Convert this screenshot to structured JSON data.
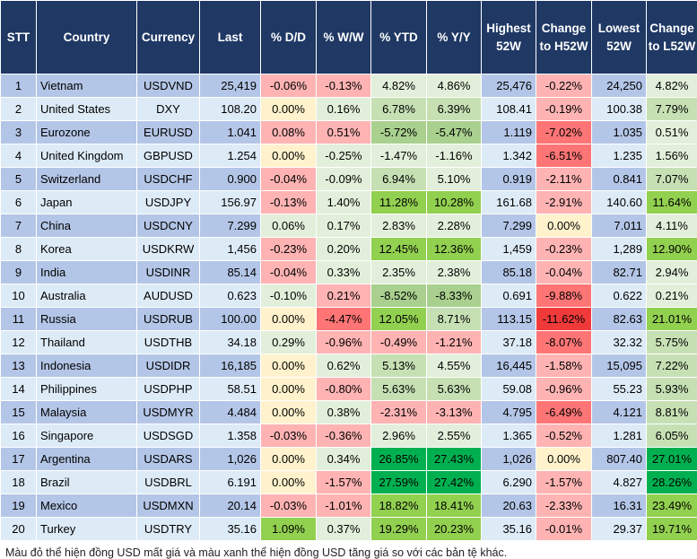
{
  "headers": [
    "STT",
    "Country",
    "Currency",
    "Last",
    "% D/D",
    "% W/W",
    "% YTD",
    "% Y/Y",
    "Highest 52W",
    "Change to H52W",
    "Lowest 52W",
    "Change to L52W"
  ],
  "colors": {
    "header": "#1f3864",
    "row_odd": "#b4c6e7",
    "row_even": "#ddebf7",
    "y": "#fff2cc",
    "r1": "#ffb3b3",
    "r2": "#ff7575",
    "r3": "#f03a3a",
    "g0": "#e2efda",
    "g1": "#c6e0b4",
    "g2": "#a9d08e",
    "g3": "#92d050",
    "g4": "#00b050"
  },
  "rows": [
    {
      "v": [
        "1",
        "Vietnam",
        "USDVND",
        "25,419",
        "-0.06%",
        "-0.13%",
        "4.82%",
        "4.86%",
        "25,476",
        "-0.22%",
        "24,250",
        "4.82%"
      ],
      "c": [
        "r1",
        "r1",
        "g0",
        "g0",
        "r1",
        "g0"
      ]
    },
    {
      "v": [
        "2",
        "United States",
        "DXY",
        "108.20",
        "0.00%",
        "0.16%",
        "6.78%",
        "6.39%",
        "108.41",
        "-0.19%",
        "100.38",
        "7.79%"
      ],
      "c": [
        "y",
        "g0",
        "g1",
        "g1",
        "r1",
        "g1"
      ]
    },
    {
      "v": [
        "3",
        "Eurozone",
        "EURUSD",
        "1.041",
        "0.08%",
        "0.51%",
        "-5.72%",
        "-5.47%",
        "1.119",
        "-7.02%",
        "1.035",
        "0.51%"
      ],
      "c": [
        "r1",
        "r1",
        "g2",
        "g2",
        "r2",
        "g0"
      ]
    },
    {
      "v": [
        "4",
        "United Kingdom",
        "GBPUSD",
        "1.254",
        "0.00%",
        "-0.25%",
        "-1.47%",
        "-1.16%",
        "1.342",
        "-6.51%",
        "1.235",
        "1.56%"
      ],
      "c": [
        "y",
        "g0",
        "g0",
        "g0",
        "r2",
        "g0"
      ]
    },
    {
      "v": [
        "5",
        "Switzerland",
        "USDCHF",
        "0.900",
        "-0.04%",
        "-0.09%",
        "6.94%",
        "5.10%",
        "0.919",
        "-2.11%",
        "0.841",
        "7.07%"
      ],
      "c": [
        "r1",
        "g0",
        "g1",
        "g0",
        "r1",
        "g1"
      ]
    },
    {
      "v": [
        "6",
        "Japan",
        "USDJPY",
        "156.97",
        "-0.13%",
        "1.40%",
        "11.28%",
        "10.28%",
        "161.68",
        "-2.91%",
        "140.60",
        "11.64%"
      ],
      "c": [
        "r1",
        "g0",
        "g3",
        "g3",
        "r1",
        "g3"
      ]
    },
    {
      "v": [
        "7",
        "China",
        "USDCNY",
        "7.299",
        "0.06%",
        "0.17%",
        "2.83%",
        "2.28%",
        "7.299",
        "0.00%",
        "7.011",
        "4.11%"
      ],
      "c": [
        "g0",
        "g0",
        "g0",
        "g0",
        "y",
        "g0"
      ]
    },
    {
      "v": [
        "8",
        "Korea",
        "USDKRW",
        "1,456",
        "-0.23%",
        "0.20%",
        "12.45%",
        "12.36%",
        "1,459",
        "-0.23%",
        "1,289",
        "12.90%"
      ],
      "c": [
        "r1",
        "g0",
        "g3",
        "g3",
        "r1",
        "g3"
      ]
    },
    {
      "v": [
        "9",
        "India",
        "USDINR",
        "85.14",
        "-0.04%",
        "0.33%",
        "2.35%",
        "2.38%",
        "85.18",
        "-0.04%",
        "82.71",
        "2.94%"
      ],
      "c": [
        "r1",
        "g0",
        "g0",
        "g0",
        "r1",
        "g0"
      ]
    },
    {
      "v": [
        "10",
        "Australia",
        "AUDUSD",
        "0.623",
        "-0.10%",
        "0.21%",
        "-8.52%",
        "-8.33%",
        "0.691",
        "-9.88%",
        "0.622",
        "0.21%"
      ],
      "c": [
        "g0",
        "r1",
        "g2",
        "g2",
        "r2",
        "g0"
      ]
    },
    {
      "v": [
        "11",
        "Russia",
        "USDRUB",
        "100.00",
        "0.00%",
        "-4.47%",
        "12.05%",
        "8.71%",
        "113.15",
        "-11.62%",
        "82.63",
        "21.01%"
      ],
      "c": [
        "y",
        "r2",
        "g3",
        "g1",
        "r3",
        "g3"
      ]
    },
    {
      "v": [
        "12",
        "Thailand",
        "USDTHB",
        "34.18",
        "0.29%",
        "-0.96%",
        "-0.49%",
        "-1.21%",
        "37.18",
        "-8.07%",
        "32.32",
        "5.75%"
      ],
      "c": [
        "g0",
        "r1",
        "r1",
        "r1",
        "r2",
        "g1"
      ]
    },
    {
      "v": [
        "13",
        "Indonesia",
        "USDIDR",
        "16,185",
        "0.00%",
        "0.62%",
        "5.13%",
        "4.55%",
        "16,445",
        "-1.58%",
        "15,095",
        "7.22%"
      ],
      "c": [
        "y",
        "g0",
        "g1",
        "g0",
        "r1",
        "g1"
      ]
    },
    {
      "v": [
        "14",
        "Philippines",
        "USDPHP",
        "58.51",
        "0.00%",
        "-0.80%",
        "5.63%",
        "5.63%",
        "59.08",
        "-0.96%",
        "55.23",
        "5.93%"
      ],
      "c": [
        "y",
        "r1",
        "g1",
        "g1",
        "r1",
        "g1"
      ]
    },
    {
      "v": [
        "15",
        "Malaysia",
        "USDMYR",
        "4.484",
        "0.00%",
        "0.38%",
        "-2.31%",
        "-3.13%",
        "4.795",
        "-6.49%",
        "4.121",
        "8.81%"
      ],
      "c": [
        "y",
        "g0",
        "r1",
        "r1",
        "r2",
        "g1"
      ]
    },
    {
      "v": [
        "16",
        "Singapore",
        "USDSGD",
        "1.358",
        "-0.03%",
        "-0.36%",
        "2.96%",
        "2.55%",
        "1.365",
        "-0.52%",
        "1.281",
        "6.05%"
      ],
      "c": [
        "r1",
        "r1",
        "g0",
        "g0",
        "r1",
        "g1"
      ]
    },
    {
      "v": [
        "17",
        "Argentina",
        "USDARS",
        "1,026",
        "0.00%",
        "0.34%",
        "26.85%",
        "27.43%",
        "1,026",
        "0.00%",
        "807.40",
        "27.01%"
      ],
      "c": [
        "y",
        "g0",
        "g4",
        "g4",
        "y",
        "g4"
      ]
    },
    {
      "v": [
        "18",
        "Brazil",
        "USDBRL",
        "6.191",
        "0.00%",
        "-1.57%",
        "27.59%",
        "27.42%",
        "6.290",
        "-1.57%",
        "4.827",
        "28.26%"
      ],
      "c": [
        "y",
        "r1",
        "g4",
        "g4",
        "r1",
        "g4"
      ]
    },
    {
      "v": [
        "19",
        "Mexico",
        "USDMXN",
        "20.14",
        "-0.03%",
        "-1.01%",
        "18.82%",
        "18.41%",
        "20.63",
        "-2.33%",
        "16.31",
        "23.49%"
      ],
      "c": [
        "r1",
        "r1",
        "g3",
        "g3",
        "r1",
        "g3"
      ]
    },
    {
      "v": [
        "20",
        "Turkey",
        "USDTRY",
        "35.16",
        "1.09%",
        "0.37%",
        "19.29%",
        "20.23%",
        "35.16",
        "-0.01%",
        "29.37",
        "19.71%"
      ],
      "c": [
        "g3",
        "g0",
        "g3",
        "g3",
        "r1",
        "g3"
      ]
    }
  ],
  "footnote": "Màu đỏ thể hiện đồng USD mất giá và màu xanh thể hiện đồng USD tăng giá so với các bản tệ khác."
}
